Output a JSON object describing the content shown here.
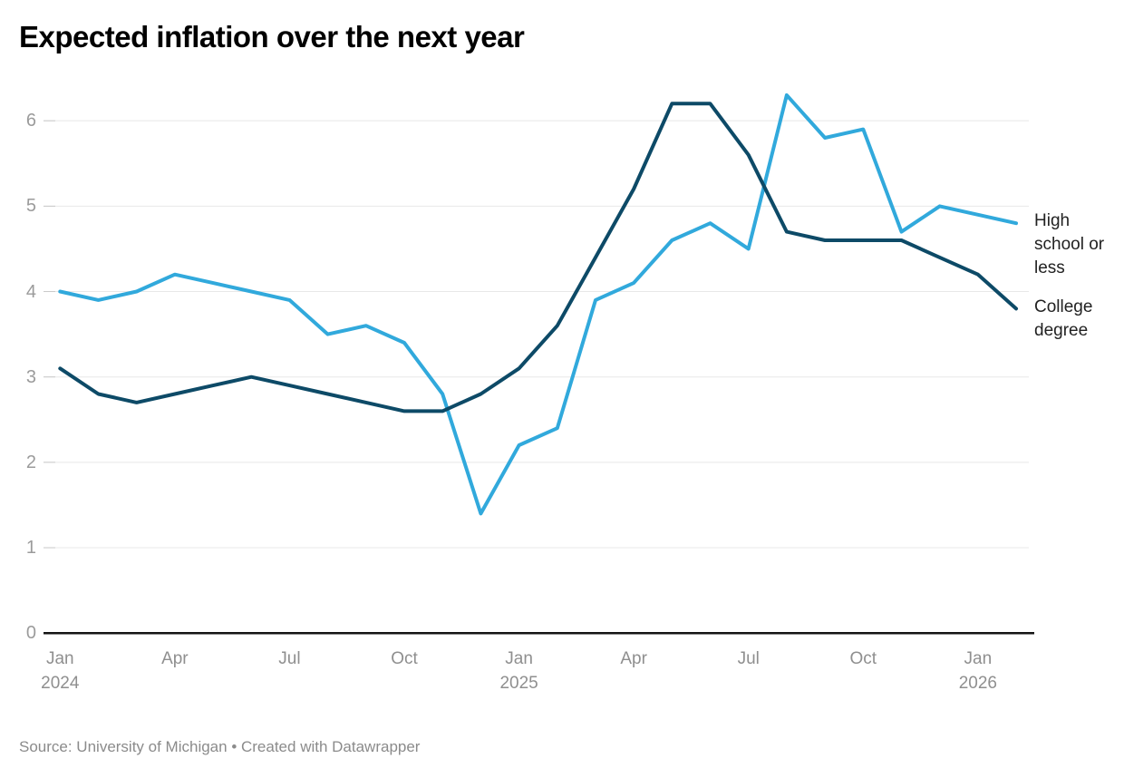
{
  "header": {
    "title": "Expected inflation over the next year"
  },
  "footer": {
    "text": "Source: University of Michigan • Created with Datawrapper"
  },
  "colors": {
    "background": "#ffffff",
    "grid": "#e8e8e8",
    "tick_stub": "#c9c9c9",
    "axis": "#141414",
    "y_tick_label": "#9b9b9b",
    "x_tick_label": "#8f8f8f",
    "series_label": "#222222",
    "footer_text": "#8b8b8b",
    "high_school": "#31a9dc",
    "college": "#0d4a67"
  },
  "chart_data": {
    "type": "line",
    "title": "Expected inflation over the next year",
    "x": [
      "Jan 2024",
      "Feb 2024",
      "Mar 2024",
      "Apr 2024",
      "May 2024",
      "Jun 2024",
      "Jul 2024",
      "Aug 2024",
      "Sep 2024",
      "Oct 2024",
      "Nov 2024",
      "Dec 2024",
      "Jan 2025",
      "Feb 2025",
      "Mar 2025",
      "Apr 2025",
      "May 2025",
      "Jun 2025",
      "Jul 2025",
      "Aug 2025",
      "Sep 2025",
      "Oct 2025",
      "Nov 2025",
      "Dec 2025",
      "Jan 2026",
      "Feb 2026"
    ],
    "series": [
      {
        "name": "High school or less",
        "color": "#31a9dc",
        "values": [
          4.0,
          3.9,
          4.0,
          4.2,
          4.1,
          4.0,
          3.9,
          3.5,
          3.6,
          3.4,
          2.8,
          1.4,
          2.2,
          2.4,
          3.9,
          4.1,
          4.6,
          4.8,
          4.5,
          6.3,
          5.8,
          5.9,
          4.7,
          5.0,
          4.9,
          4.8
        ]
      },
      {
        "name": "College degree",
        "color": "#0d4a67",
        "values": [
          3.1,
          2.8,
          2.7,
          2.8,
          2.9,
          3.0,
          2.9,
          2.8,
          2.7,
          2.6,
          2.6,
          2.8,
          3.1,
          3.6,
          4.4,
          5.2,
          6.2,
          6.2,
          5.6,
          4.7,
          4.6,
          4.6,
          4.6,
          4.4,
          4.2,
          3.8
        ]
      }
    ],
    "yticks": [
      0,
      1,
      2,
      3,
      4,
      5,
      6
    ],
    "ylim": [
      0,
      6.55
    ],
    "xticks": [
      {
        "index": 0,
        "label": "Jan",
        "year": "2024"
      },
      {
        "index": 3,
        "label": "Apr",
        "year": ""
      },
      {
        "index": 6,
        "label": "Jul",
        "year": ""
      },
      {
        "index": 9,
        "label": "Oct",
        "year": ""
      },
      {
        "index": 12,
        "label": "Jan",
        "year": "2025"
      },
      {
        "index": 15,
        "label": "Apr",
        "year": ""
      },
      {
        "index": 18,
        "label": "Jul",
        "year": ""
      },
      {
        "index": 21,
        "label": "Oct",
        "year": ""
      },
      {
        "index": 24,
        "label": "Jan",
        "year": "2026"
      }
    ],
    "grid": true,
    "legend_position": "right-of-line-ends",
    "source": "University of Michigan",
    "tool": "Datawrapper"
  }
}
